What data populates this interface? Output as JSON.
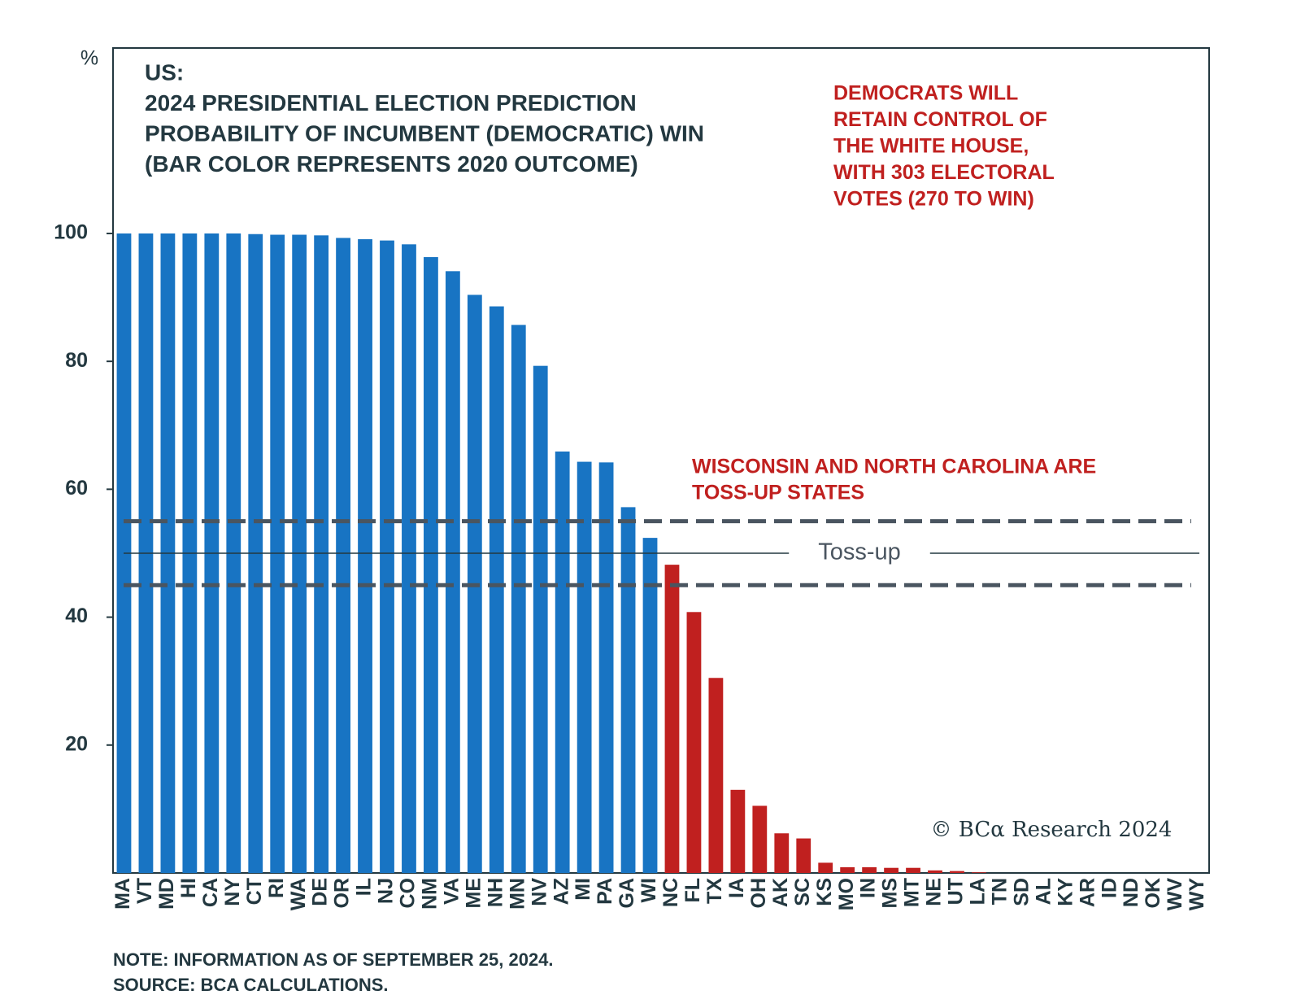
{
  "chart_data": {
    "type": "bar",
    "title": [
      "US:",
      "2024 PRESIDENTIAL ELECTION PREDICTION",
      "PROBABILITY OF INCUMBENT (DEMOCRATIC) WIN",
      "(BAR COLOR REPRESENTS 2020 OUTCOME)"
    ],
    "y_unit": "%",
    "categories": [
      "MA",
      "VT",
      "MD",
      "HI",
      "CA",
      "NY",
      "CT",
      "RI",
      "WA",
      "DE",
      "OR",
      "IL",
      "NJ",
      "CO",
      "NM",
      "VA",
      "ME",
      "NH",
      "MN",
      "NV",
      "AZ",
      "MI",
      "PA",
      "GA",
      "WI",
      "NC",
      "FL",
      "TX",
      "IA",
      "OH",
      "AK",
      "SC",
      "KS",
      "MO",
      "IN",
      "MS",
      "MT",
      "NE",
      "UT",
      "LA",
      "TN",
      "SD",
      "AL",
      "KY",
      "AR",
      "ID",
      "ND",
      "OK",
      "WV",
      "WY"
    ],
    "values": [
      100,
      100,
      100,
      100,
      100,
      100,
      99.9,
      99.8,
      99.8,
      99.7,
      99.3,
      99.1,
      98.9,
      98.3,
      96.3,
      94.1,
      90.4,
      88.6,
      85.7,
      79.3,
      65.9,
      64.3,
      64.2,
      57.2,
      52.4,
      48.2,
      40.8,
      30.5,
      13.0,
      10.5,
      6.2,
      5.4,
      1.6,
      0.9,
      0.9,
      0.8,
      0.8,
      0.4,
      0.3,
      0.1,
      0,
      0,
      0,
      0,
      0,
      0,
      0,
      0,
      0,
      0
    ],
    "colors": [
      "#1874c3",
      "#1874c3",
      "#1874c3",
      "#1874c3",
      "#1874c3",
      "#1874c3",
      "#1874c3",
      "#1874c3",
      "#1874c3",
      "#1874c3",
      "#1874c3",
      "#1874c3",
      "#1874c3",
      "#1874c3",
      "#1874c3",
      "#1874c3",
      "#1874c3",
      "#1874c3",
      "#1874c3",
      "#1874c3",
      "#1874c3",
      "#1874c3",
      "#1874c3",
      "#1874c3",
      "#1874c3",
      "#c0201f",
      "#c0201f",
      "#c0201f",
      "#c0201f",
      "#c0201f",
      "#c0201f",
      "#c0201f",
      "#c0201f",
      "#c0201f",
      "#c0201f",
      "#c0201f",
      "#c0201f",
      "#c0201f",
      "#c0201f",
      "#c0201f",
      "#c0201f",
      "#c0201f",
      "#c0201f",
      "#c0201f",
      "#c0201f",
      "#c0201f",
      "#c0201f",
      "#c0201f",
      "#c0201f",
      "#c0201f"
    ],
    "ylim": [
      0,
      129
    ],
    "yticks": [
      20,
      40,
      60,
      80,
      100
    ],
    "reference_lines": [
      {
        "value": 55,
        "style": "dashed"
      },
      {
        "value": 50,
        "style": "solid",
        "label": "Toss-up"
      },
      {
        "value": 45,
        "style": "dashed"
      }
    ],
    "annotations": [
      [
        "DEMOCRATS WILL",
        "RETAIN CONTROL OF",
        "THE WHITE HOUSE,",
        "WITH 303 ELECTORAL",
        "VOTES (270 TO WIN)"
      ],
      [
        "WISCONSIN AND NORTH CAROLINA ARE",
        "TOSS-UP STATES"
      ]
    ],
    "copyright": "© BCα Research 2024",
    "note": "NOTE: INFORMATION AS OF SEPTEMBER 25, 2024.",
    "source": "SOURCE: BCA CALCULATIONS."
  }
}
